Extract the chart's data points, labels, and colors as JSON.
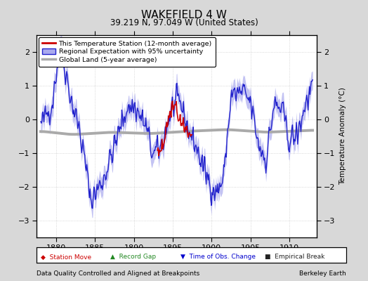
{
  "title": "WAKEFIELD 4 W",
  "subtitle": "39.219 N, 97.049 W (United States)",
  "xlabel_left": "Data Quality Controlled and Aligned at Breakpoints",
  "xlabel_right": "Berkeley Earth",
  "ylabel": "Temperature Anomaly (°C)",
  "xlim": [
    1877.5,
    1913.5
  ],
  "ylim": [
    -3.5,
    2.5
  ],
  "yticks": [
    -3,
    -2,
    -1,
    0,
    1,
    2
  ],
  "xticks": [
    1880,
    1885,
    1890,
    1895,
    1900,
    1905,
    1910
  ],
  "bg_color": "#d8d8d8",
  "plot_bg_color": "#ffffff",
  "regional_color": "#2222cc",
  "regional_fill_color": "#aaaaee",
  "station_color": "#cc0000",
  "global_color": "#aaaaaa",
  "station_start": 1893.0,
  "station_end": 1897.5
}
